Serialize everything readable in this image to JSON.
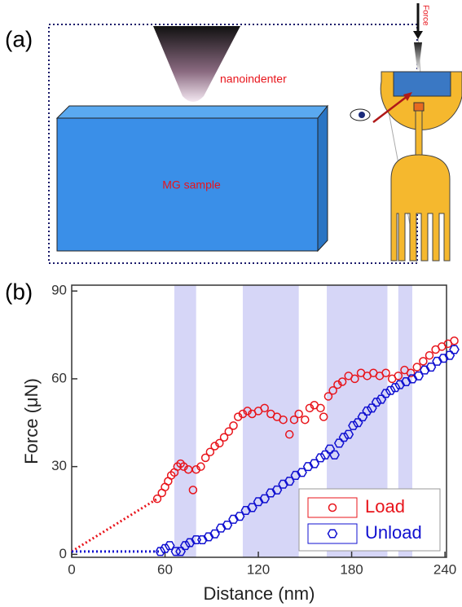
{
  "panel_labels": [
    "(a)",
    "(b)"
  ],
  "diagram": {
    "nanoindenter_label": "nanoindenter",
    "sample_label": "MG sample",
    "force_label": "Force"
  },
  "chart_data": {
    "type": "scatter",
    "xlabel": "Distance (nm)",
    "ylabel": "Force (μN)",
    "xlim": [
      0,
      241
    ],
    "ylim": [
      -1,
      92
    ],
    "xticks": [
      0,
      60,
      120,
      180,
      240
    ],
    "yticks": [
      0,
      30,
      60,
      90
    ],
    "legend": "lower right",
    "shaded_regions": [
      [
        66,
        80
      ],
      [
        110,
        146
      ],
      [
        164,
        203
      ],
      [
        210,
        219
      ]
    ],
    "shade_color": "#d6d6f7",
    "series": [
      {
        "name": "Load",
        "color": "#e8141b",
        "marker": "circle",
        "x": [
          55,
          58,
          60,
          62,
          64,
          66,
          68,
          70,
          72,
          75,
          78,
          80,
          83,
          86,
          89,
          92,
          95,
          98,
          101,
          104,
          107,
          110,
          113,
          116,
          120,
          124,
          128,
          132,
          136,
          140,
          143,
          146,
          150,
          153,
          156,
          160,
          162,
          165,
          168,
          171,
          174,
          178,
          182,
          186,
          190,
          194,
          198,
          202,
          206,
          210,
          214,
          218,
          222,
          226,
          230,
          234,
          238,
          242,
          246
        ],
        "values": [
          19,
          21,
          23,
          25,
          27,
          28,
          30,
          31,
          30,
          29,
          22,
          29,
          30,
          33,
          35,
          37,
          38,
          40,
          42,
          44,
          47,
          48,
          49,
          48,
          49,
          50,
          48,
          47,
          46,
          41,
          46,
          48,
          46,
          50,
          51,
          50,
          47,
          54,
          56,
          58,
          59,
          61,
          60,
          62,
          61,
          62,
          61,
          62,
          60,
          61,
          63,
          62,
          64,
          66,
          68,
          70,
          71,
          72,
          73
        ]
      },
      {
        "name": "Unload",
        "color": "#1010d0",
        "marker": "hexagon",
        "x": [
          57,
          60,
          63,
          67,
          70,
          73,
          76,
          80,
          84,
          88,
          92,
          96,
          100,
          104,
          108,
          112,
          116,
          120,
          124,
          128,
          132,
          136,
          140,
          144,
          148,
          152,
          156,
          160,
          163,
          166,
          169,
          172,
          175,
          178,
          181,
          184,
          187,
          190,
          193,
          196,
          199,
          202,
          205,
          208,
          211,
          215,
          219,
          223,
          227,
          231,
          235,
          239,
          243,
          246
        ],
        "values": [
          1,
          2,
          3,
          1,
          1,
          3,
          4,
          5,
          5,
          6,
          7,
          9,
          10,
          12,
          13,
          15,
          16,
          18,
          19,
          21,
          22,
          24,
          25,
          27,
          28,
          30,
          31,
          33,
          34,
          36,
          34,
          38,
          40,
          41,
          44,
          45,
          47,
          49,
          50,
          52,
          53,
          55,
          56,
          57,
          58,
          59,
          60,
          61,
          63,
          64,
          66,
          67,
          68,
          70
        ]
      }
    ],
    "extrapolations": [
      {
        "color": "#e8141b",
        "x": [
          0,
          55
        ],
        "values": [
          1,
          19
        ]
      },
      {
        "color": "#1010d0",
        "x": [
          0,
          57
        ],
        "values": [
          1,
          1
        ]
      }
    ]
  }
}
